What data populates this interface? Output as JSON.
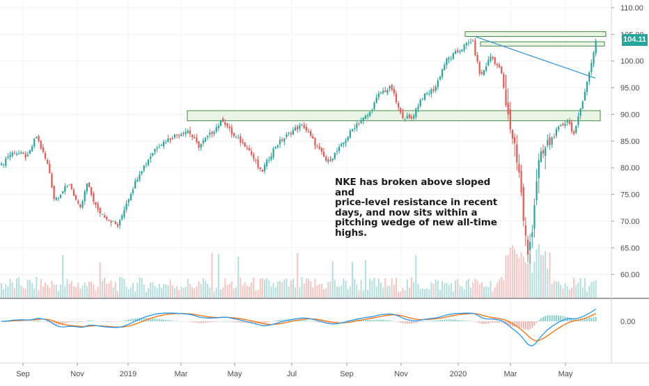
{
  "chart_data": {
    "type": "candlestick",
    "symbol": "NKE",
    "x_labels": [
      "Sep",
      "Nov",
      "2019",
      "Mar",
      "May",
      "Jul",
      "Sep",
      "Nov",
      "2020",
      "Mar",
      "May"
    ],
    "y_ticks": [
      "110.00",
      "105.00",
      "100.00",
      "95.00",
      "90.00",
      "85.00",
      "80.00",
      "75.00",
      "70.00",
      "65.00",
      "60.00"
    ],
    "y_range": [
      55,
      112
    ],
    "last_price": "104.11",
    "macd_zero_label": "0.00",
    "close_anchors": [
      {
        "t": 0,
        "v": 80
      },
      {
        "t": 10,
        "v": 82
      },
      {
        "t": 20,
        "v": 83
      },
      {
        "t": 40,
        "v": 82
      },
      {
        "t": 52,
        "v": 86
      },
      {
        "t": 70,
        "v": 80
      },
      {
        "t": 78,
        "v": 74
      },
      {
        "t": 100,
        "v": 77
      },
      {
        "t": 115,
        "v": 72
      },
      {
        "t": 125,
        "v": 77
      },
      {
        "t": 140,
        "v": 72
      },
      {
        "t": 160,
        "v": 70
      },
      {
        "t": 170,
        "v": 69
      },
      {
        "t": 180,
        "v": 73
      },
      {
        "t": 200,
        "v": 79
      },
      {
        "t": 225,
        "v": 84
      },
      {
        "t": 250,
        "v": 86
      },
      {
        "t": 270,
        "v": 87
      },
      {
        "t": 285,
        "v": 84
      },
      {
        "t": 300,
        "v": 86
      },
      {
        "t": 320,
        "v": 89
      },
      {
        "t": 335,
        "v": 86
      },
      {
        "t": 355,
        "v": 84
      },
      {
        "t": 375,
        "v": 79
      },
      {
        "t": 395,
        "v": 84
      },
      {
        "t": 420,
        "v": 87
      },
      {
        "t": 435,
        "v": 88
      },
      {
        "t": 460,
        "v": 83
      },
      {
        "t": 470,
        "v": 81
      },
      {
        "t": 490,
        "v": 84
      },
      {
        "t": 510,
        "v": 88
      },
      {
        "t": 530,
        "v": 90
      },
      {
        "t": 545,
        "v": 94
      },
      {
        "t": 562,
        "v": 95
      },
      {
        "t": 575,
        "v": 90
      },
      {
        "t": 590,
        "v": 89
      },
      {
        "t": 605,
        "v": 93
      },
      {
        "t": 625,
        "v": 95
      },
      {
        "t": 640,
        "v": 100
      },
      {
        "t": 660,
        "v": 102
      },
      {
        "t": 678,
        "v": 104
      },
      {
        "t": 690,
        "v": 97
      },
      {
        "t": 705,
        "v": 101
      },
      {
        "t": 720,
        "v": 98
      },
      {
        "t": 728,
        "v": 90
      },
      {
        "t": 738,
        "v": 85
      },
      {
        "t": 745,
        "v": 80
      },
      {
        "t": 752,
        "v": 70
      },
      {
        "t": 758,
        "v": 63
      },
      {
        "t": 765,
        "v": 70
      },
      {
        "t": 772,
        "v": 80
      },
      {
        "t": 785,
        "v": 84
      },
      {
        "t": 800,
        "v": 87
      },
      {
        "t": 815,
        "v": 89
      },
      {
        "t": 825,
        "v": 86
      },
      {
        "t": 835,
        "v": 92
      },
      {
        "t": 845,
        "v": 97
      },
      {
        "t": 856,
        "v": 104
      }
    ],
    "resistance_zones": [
      {
        "from_t": 269,
        "to_t": 862,
        "low": 88.8,
        "high": 90.7
      },
      {
        "from_t": 668,
        "to_t": 870,
        "low": 104.6,
        "high": 105.5
      },
      {
        "from_t": 690,
        "to_t": 868,
        "low": 102.8,
        "high": 103.6
      }
    ],
    "trendline": {
      "from": {
        "t": 682,
        "v": 104.6
      },
      "to": {
        "t": 855,
        "v": 96.8
      }
    },
    "annotation": [
      "NKE has broken above sloped and",
      "price-level resistance in recent",
      "days, and now sits within a",
      "pitching wedge of new all-time",
      "highs."
    ]
  },
  "colors": {
    "up": "#26a69a",
    "down": "#ef5350",
    "macd_line": "#2196f3",
    "signal_line": "#ff6d00",
    "zone_fill": "#e8f3e3",
    "zone_stroke": "#2e7d32",
    "trendline": "#2a8fd4",
    "price_tag": "#26a69a"
  }
}
